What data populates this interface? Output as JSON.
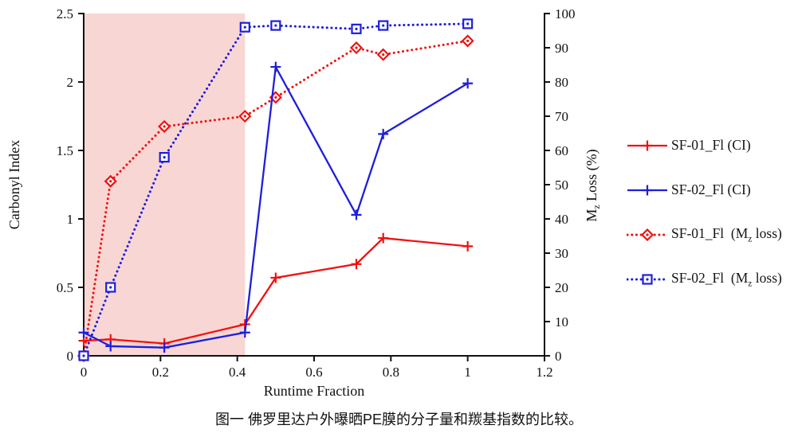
{
  "caption": "图一 佛罗里达户外曝晒PE膜的分子量和羰基指数的比较。",
  "colors": {
    "red": "#f21010",
    "blue": "#1e1edd",
    "shade": "#f8d6d3",
    "axis": "#111111"
  },
  "chart_data": {
    "type": "line",
    "title": "",
    "xlabel": "Runtime Fraction",
    "ylabel_left": "Carbonyl Index",
    "ylabel_right": {
      "pre": "M",
      "sub": "z",
      "post": " Loss (%)"
    },
    "xlim": [
      0,
      1.2
    ],
    "ylim_left": [
      0,
      2.5
    ],
    "ylim_right": [
      0,
      100
    ],
    "grid": false,
    "legend_position": "right",
    "x_ticks": [
      0,
      0.2,
      0.4,
      0.6,
      0.8,
      1,
      1.2
    ],
    "x_tick_labels": [
      "0",
      "0.2",
      "0.4",
      "0.6",
      "0.8",
      "1",
      "1.2"
    ],
    "left_ticks": [
      0,
      0.5,
      1,
      1.5,
      2,
      2.5
    ],
    "left_tick_labels": [
      "0",
      "0.5",
      "1",
      "1.5",
      "2",
      "2.5"
    ],
    "right_ticks": [
      0,
      10,
      20,
      30,
      40,
      50,
      60,
      70,
      80,
      90,
      100
    ],
    "right_tick_labels": [
      "0",
      "10",
      "20",
      "30",
      "40",
      "50",
      "60",
      "70",
      "80",
      "90",
      "100"
    ],
    "shaded_region": {
      "x0": 0,
      "x1": 0.42
    },
    "x": [
      0,
      0.07,
      0.21,
      0.42,
      0.5,
      0.71,
      0.78,
      1
    ],
    "series": [
      {
        "name": "SF-01_Fl (CI)",
        "axis": "left",
        "color": "red",
        "style": "solid",
        "marker": "plus",
        "values": [
          0.11,
          0.12,
          0.09,
          0.23,
          0.57,
          0.67,
          0.86,
          0.8
        ],
        "legend": {
          "pre": "SF-01_Fl (CI)",
          "sub": "",
          "post": ""
        }
      },
      {
        "name": "SF-02_Fl (CI)",
        "axis": "left",
        "color": "blue",
        "style": "solid",
        "marker": "plus",
        "values": [
          0.17,
          0.07,
          0.06,
          0.17,
          2.11,
          1.03,
          1.62,
          1.99
        ],
        "legend": {
          "pre": "SF-02_Fl (CI)",
          "sub": "",
          "post": ""
        }
      },
      {
        "name": "SF-01_Fl (Mz loss)",
        "axis": "right",
        "color": "red",
        "style": "dotted",
        "marker": "diamond",
        "values": [
          0,
          51,
          67,
          70,
          75.5,
          90,
          88,
          92
        ],
        "legend": {
          "pre": "SF-01_Fl  (M",
          "sub": "z",
          "post": " loss)"
        }
      },
      {
        "name": "SF-02_Fl (Mz loss)",
        "axis": "right",
        "color": "blue",
        "style": "dotted",
        "marker": "square",
        "values": [
          0,
          20,
          58,
          96,
          96.5,
          95.5,
          96.5,
          97
        ],
        "legend": {
          "pre": "SF-02_Fl  (M",
          "sub": "z",
          "post": " loss)"
        }
      }
    ]
  }
}
